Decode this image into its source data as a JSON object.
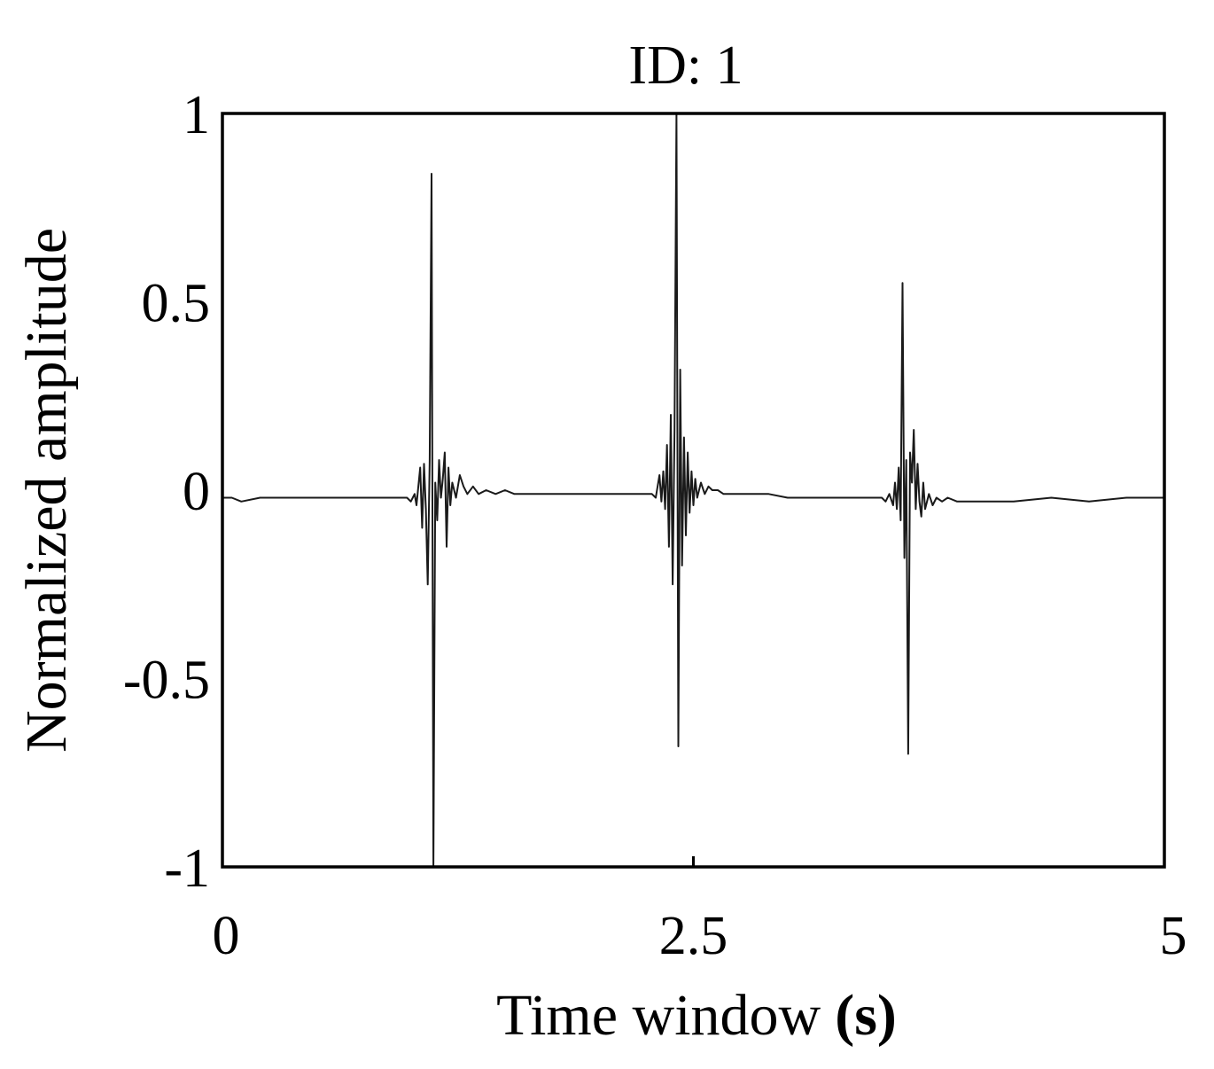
{
  "chart_data": {
    "type": "line",
    "title": "ID: 1",
    "xlabel": "Time window",
    "xlabel_unit": "(s)",
    "ylabel": "Normalized amplitude",
    "xlim": [
      0,
      5
    ],
    "ylim": [
      -1,
      1
    ],
    "x_ticks": [
      0,
      2.5,
      5
    ],
    "x_tick_labels": [
      "0",
      "2.5",
      "5"
    ],
    "y_ticks": [
      1,
      0.5,
      0,
      -0.5,
      -1
    ],
    "y_tick_labels": [
      "1",
      "0.5",
      "0",
      "-0.5",
      "-1"
    ],
    "grid": false,
    "legend": false,
    "line_color": "#1a1a1a",
    "series": [
      {
        "x": [
          0.0,
          0.05,
          0.1,
          0.2,
          0.3,
          0.4,
          0.5,
          0.6,
          0.7,
          0.8,
          0.9,
          0.98,
          1.0,
          1.02,
          1.03,
          1.04,
          1.05,
          1.06,
          1.07,
          1.08,
          1.09,
          1.1,
          1.11,
          1.12,
          1.13,
          1.14,
          1.15,
          1.16,
          1.17,
          1.18,
          1.19,
          1.2,
          1.21,
          1.22,
          1.24,
          1.26,
          1.28,
          1.3,
          1.33,
          1.36,
          1.4,
          1.45,
          1.5,
          1.55,
          1.6,
          1.7,
          1.8,
          1.9,
          2.0,
          2.1,
          2.2,
          2.28,
          2.3,
          2.32,
          2.33,
          2.34,
          2.35,
          2.36,
          2.37,
          2.38,
          2.39,
          2.4,
          2.41,
          2.42,
          2.43,
          2.44,
          2.45,
          2.46,
          2.47,
          2.48,
          2.49,
          2.5,
          2.51,
          2.52,
          2.54,
          2.56,
          2.58,
          2.6,
          2.63,
          2.66,
          2.7,
          2.8,
          2.9,
          3.0,
          3.1,
          3.2,
          3.3,
          3.4,
          3.5,
          3.52,
          3.54,
          3.56,
          3.57,
          3.58,
          3.59,
          3.6,
          3.61,
          3.62,
          3.63,
          3.64,
          3.65,
          3.66,
          3.67,
          3.68,
          3.69,
          3.7,
          3.71,
          3.72,
          3.73,
          3.75,
          3.77,
          3.79,
          3.82,
          3.85,
          3.9,
          4.0,
          4.2,
          4.4,
          4.6,
          4.8,
          5.0
        ],
        "y": [
          -0.02,
          -0.02,
          -0.03,
          -0.02,
          -0.02,
          -0.02,
          -0.02,
          -0.02,
          -0.02,
          -0.02,
          -0.02,
          -0.02,
          -0.03,
          -0.01,
          -0.04,
          0.01,
          0.06,
          -0.1,
          0.07,
          -0.05,
          -0.25,
          0.08,
          0.84,
          -1.0,
          0.02,
          -0.08,
          0.08,
          -0.02,
          0.03,
          0.1,
          -0.15,
          0.06,
          -0.04,
          0.02,
          -0.02,
          0.04,
          0.01,
          -0.01,
          0.01,
          -0.01,
          0.0,
          -0.01,
          0.0,
          -0.01,
          -0.01,
          -0.01,
          -0.01,
          -0.01,
          -0.01,
          -0.01,
          -0.01,
          -0.01,
          -0.02,
          0.04,
          -0.03,
          0.05,
          -0.05,
          0.12,
          -0.15,
          0.2,
          -0.25,
          0.16,
          1.0,
          -0.68,
          0.32,
          -0.2,
          0.14,
          -0.12,
          0.1,
          -0.06,
          0.05,
          -0.04,
          0.03,
          -0.02,
          0.02,
          -0.01,
          0.01,
          0.0,
          0.0,
          -0.01,
          -0.01,
          -0.01,
          -0.01,
          -0.02,
          -0.02,
          -0.02,
          -0.02,
          -0.02,
          -0.02,
          -0.03,
          -0.01,
          -0.04,
          0.02,
          -0.05,
          0.06,
          -0.08,
          0.55,
          -0.18,
          0.08,
          -0.7,
          0.1,
          0.02,
          0.16,
          -0.05,
          0.07,
          -0.03,
          -0.07,
          0.02,
          -0.05,
          -0.01,
          -0.04,
          -0.02,
          -0.03,
          -0.02,
          -0.03,
          -0.03,
          -0.03,
          -0.02,
          -0.03,
          -0.02,
          -0.02
        ]
      }
    ]
  }
}
